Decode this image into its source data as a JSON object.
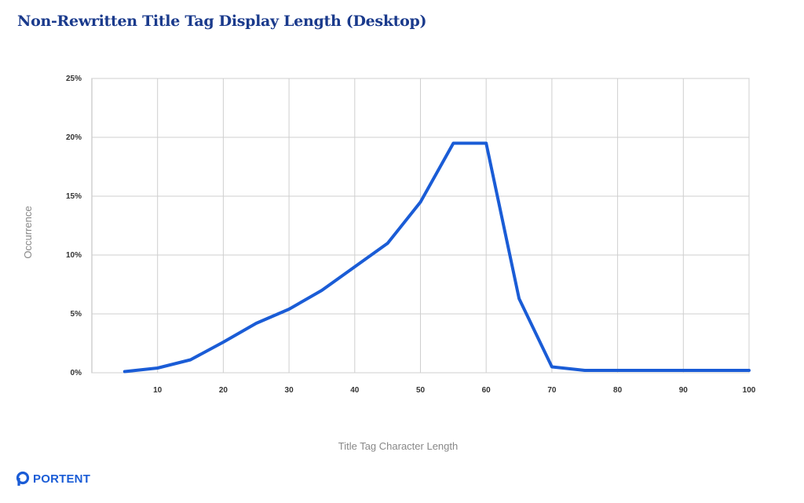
{
  "title": "Non-Rewritten Title Tag Display Length (Desktop)",
  "brand": {
    "name": "PORTENT",
    "color": "#1a5cd6"
  },
  "chart_data": {
    "type": "line",
    "xlabel": "Title Tag Character Length",
    "ylabel": "Occurrence",
    "xlim": [
      0,
      100
    ],
    "ylim": [
      0,
      25
    ],
    "x_ticks": [
      10,
      20,
      30,
      40,
      50,
      60,
      70,
      80,
      90,
      100
    ],
    "x_tick_labels": [
      "10",
      "20",
      "30",
      "40",
      "50",
      "60",
      "70",
      "80",
      "90",
      "100"
    ],
    "y_ticks": [
      0,
      5,
      10,
      15,
      20,
      25
    ],
    "y_tick_labels": [
      "0%",
      "5%",
      "10%",
      "15%",
      "20%",
      "25%"
    ],
    "grid": true,
    "series": [
      {
        "color": "#1a5cd6",
        "x": [
          5,
          10,
          15,
          20,
          25,
          30,
          35,
          40,
          45,
          50,
          55,
          60,
          65,
          70,
          75,
          80,
          85,
          90,
          95,
          100
        ],
        "y": [
          0.1,
          0.4,
          1.1,
          2.6,
          4.2,
          5.4,
          7.0,
          9.0,
          11.0,
          14.5,
          19.5,
          19.5,
          6.3,
          0.5,
          0.2,
          0.2,
          0.2,
          0.2,
          0.2,
          0.2
        ]
      }
    ]
  }
}
